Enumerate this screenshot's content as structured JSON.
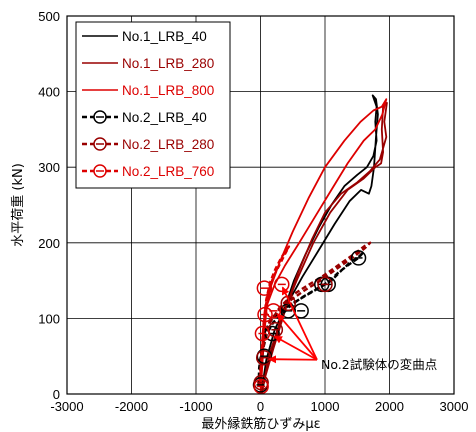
{
  "chart_data": {
    "type": "line",
    "xlabel": "最外縁鉄筋ひずみμε",
    "ylabel": "水平荷重 (kN)",
    "xlim": [
      -3000,
      3000
    ],
    "ylim": [
      0,
      500
    ],
    "x_ticks": [
      -3000,
      -2000,
      -1000,
      0,
      1000,
      2000,
      3000
    ],
    "y_ticks": [
      0,
      100,
      200,
      300,
      400,
      500
    ],
    "grid": true,
    "legend_position": "top-left",
    "series": [
      {
        "name": "No.1_LRB_40",
        "color": "#000000",
        "style": "solid",
        "points": [
          [
            0,
            0
          ],
          [
            60,
            20
          ],
          [
            140,
            45
          ],
          [
            250,
            80
          ],
          [
            380,
            115
          ],
          [
            520,
            150
          ],
          [
            700,
            185
          ],
          [
            900,
            220
          ],
          [
            1100,
            250
          ],
          [
            1300,
            275
          ],
          [
            1500,
            290
          ],
          [
            1650,
            300
          ],
          [
            1750,
            315
          ],
          [
            1800,
            335
          ],
          [
            1780,
            360
          ],
          [
            1800,
            380
          ],
          [
            1740,
            395
          ],
          [
            1790,
            390
          ],
          [
            1820,
            370
          ],
          [
            1790,
            340
          ],
          [
            1760,
            300
          ],
          [
            1720,
            275
          ],
          [
            1680,
            265
          ],
          [
            1560,
            270
          ],
          [
            1380,
            255
          ],
          [
            1150,
            225
          ],
          [
            900,
            190
          ],
          [
            650,
            155
          ],
          [
            420,
            120
          ],
          [
            220,
            85
          ],
          [
            90,
            45
          ],
          [
            10,
            0
          ]
        ]
      },
      {
        "name": "No.1_LRB_280",
        "color": "#990000",
        "style": "solid",
        "points": [
          [
            0,
            0
          ],
          [
            80,
            25
          ],
          [
            200,
            60
          ],
          [
            380,
            110
          ],
          [
            580,
            160
          ],
          [
            800,
            205
          ],
          [
            1000,
            240
          ],
          [
            1250,
            265
          ],
          [
            1500,
            280
          ],
          [
            1700,
            295
          ],
          [
            1850,
            310
          ],
          [
            1900,
            325
          ],
          [
            1950,
            340
          ],
          [
            1920,
            360
          ],
          [
            1960,
            385
          ],
          [
            1900,
            380
          ],
          [
            1880,
            350
          ],
          [
            1900,
            320
          ],
          [
            1870,
            305
          ],
          [
            1780,
            300
          ],
          [
            1600,
            285
          ],
          [
            1350,
            270
          ],
          [
            1080,
            240
          ],
          [
            820,
            200
          ],
          [
            560,
            150
          ],
          [
            320,
            100
          ],
          [
            130,
            50
          ],
          [
            20,
            0
          ]
        ]
      },
      {
        "name": "No.1_LRB_800",
        "color": "#dd0000",
        "style": "solid",
        "points": [
          [
            0,
            0
          ],
          [
            30,
            40
          ],
          [
            60,
            80
          ],
          [
            90,
            110
          ],
          [
            150,
            140
          ],
          [
            300,
            175
          ],
          [
            500,
            215
          ],
          [
            750,
            260
          ],
          [
            1000,
            300
          ],
          [
            1300,
            335
          ],
          [
            1550,
            360
          ],
          [
            1750,
            375
          ],
          [
            1880,
            380
          ],
          [
            1950,
            390
          ],
          [
            1890,
            370
          ],
          [
            1780,
            350
          ],
          [
            1600,
            335
          ],
          [
            1350,
            305
          ],
          [
            1100,
            270
          ],
          [
            850,
            235
          ],
          [
            600,
            200
          ],
          [
            380,
            170
          ],
          [
            220,
            145
          ],
          [
            110,
            120
          ],
          [
            50,
            90
          ],
          [
            20,
            50
          ],
          [
            0,
            0
          ]
        ]
      },
      {
        "name": "No.2_LRB_40",
        "color": "#000000",
        "style": "dashed",
        "points": [
          [
            -30,
            10
          ],
          [
            0,
            35
          ],
          [
            40,
            60
          ],
          [
            100,
            80
          ],
          [
            200,
            95
          ],
          [
            330,
            105
          ],
          [
            480,
            118
          ],
          [
            650,
            128
          ],
          [
            850,
            138
          ],
          [
            1050,
            148
          ],
          [
            1200,
            160
          ],
          [
            1350,
            170
          ],
          [
            1520,
            180
          ],
          [
            1600,
            188
          ],
          [
            1530,
            182
          ],
          [
            1400,
            175
          ],
          [
            1250,
            163
          ],
          [
            1100,
            150
          ],
          [
            900,
            140
          ],
          [
            700,
            130
          ],
          [
            500,
            120
          ],
          [
            330,
            110
          ],
          [
            180,
            100
          ],
          [
            80,
            85
          ],
          [
            20,
            60
          ],
          [
            -20,
            35
          ],
          [
            -30,
            10
          ]
        ]
      },
      {
        "name": "No.2_LRB_280",
        "color": "#990000",
        "style": "dashed",
        "points": [
          [
            -20,
            10
          ],
          [
            10,
            40
          ],
          [
            60,
            70
          ],
          [
            150,
            95
          ],
          [
            300,
            115
          ],
          [
            480,
            130
          ],
          [
            700,
            142
          ],
          [
            950,
            155
          ],
          [
            1200,
            170
          ],
          [
            1450,
            185
          ],
          [
            1650,
            198
          ],
          [
            1700,
            200
          ],
          [
            1620,
            193
          ],
          [
            1420,
            180
          ],
          [
            1170,
            165
          ],
          [
            930,
            150
          ],
          [
            700,
            138
          ],
          [
            480,
            125
          ],
          [
            300,
            112
          ],
          [
            150,
            98
          ],
          [
            60,
            75
          ],
          [
            10,
            45
          ],
          [
            -20,
            10
          ]
        ]
      },
      {
        "name": "No.2_LRB_760",
        "color": "#dd0000",
        "style": "dashed",
        "points": [
          [
            -10,
            10
          ],
          [
            20,
            45
          ],
          [
            40,
            80
          ],
          [
            70,
            110
          ],
          [
            120,
            135
          ],
          [
            200,
            155
          ],
          [
            300,
            172
          ],
          [
            380,
            185
          ],
          [
            440,
            195
          ],
          [
            400,
            190
          ],
          [
            320,
            180
          ],
          [
            230,
            165
          ],
          [
            150,
            148
          ],
          [
            90,
            125
          ],
          [
            50,
            95
          ],
          [
            20,
            60
          ],
          [
            -10,
            10
          ]
        ]
      }
    ],
    "markers": [
      {
        "series": "No.2_LRB_40",
        "points": [
          [
            0,
            12
          ],
          [
            60,
            50
          ],
          [
            180,
            80
          ],
          [
            430,
            110
          ],
          [
            630,
            110
          ],
          [
            950,
            145
          ],
          [
            1050,
            145
          ],
          [
            1520,
            180
          ]
        ]
      },
      {
        "series": "No.2_LRB_280",
        "points": [
          [
            10,
            15
          ],
          [
            50,
            48
          ],
          [
            230,
            85
          ],
          [
            430,
            120
          ],
          [
            1000,
            145
          ]
        ]
      },
      {
        "series": "No.2_LRB_760",
        "points": [
          [
            10,
            10
          ],
          [
            30,
            80
          ],
          [
            70,
            105
          ],
          [
            60,
            140
          ],
          [
            330,
            145
          ],
          [
            200,
            110
          ]
        ]
      }
    ],
    "annotation": {
      "text": "No.2試験体の変曲点",
      "arrow_targets": [
        [
          40,
          50
        ],
        [
          130,
          80
        ],
        [
          170,
          110
        ],
        [
          250,
          145
        ]
      ],
      "label_at": [
        1000,
        40
      ]
    }
  }
}
